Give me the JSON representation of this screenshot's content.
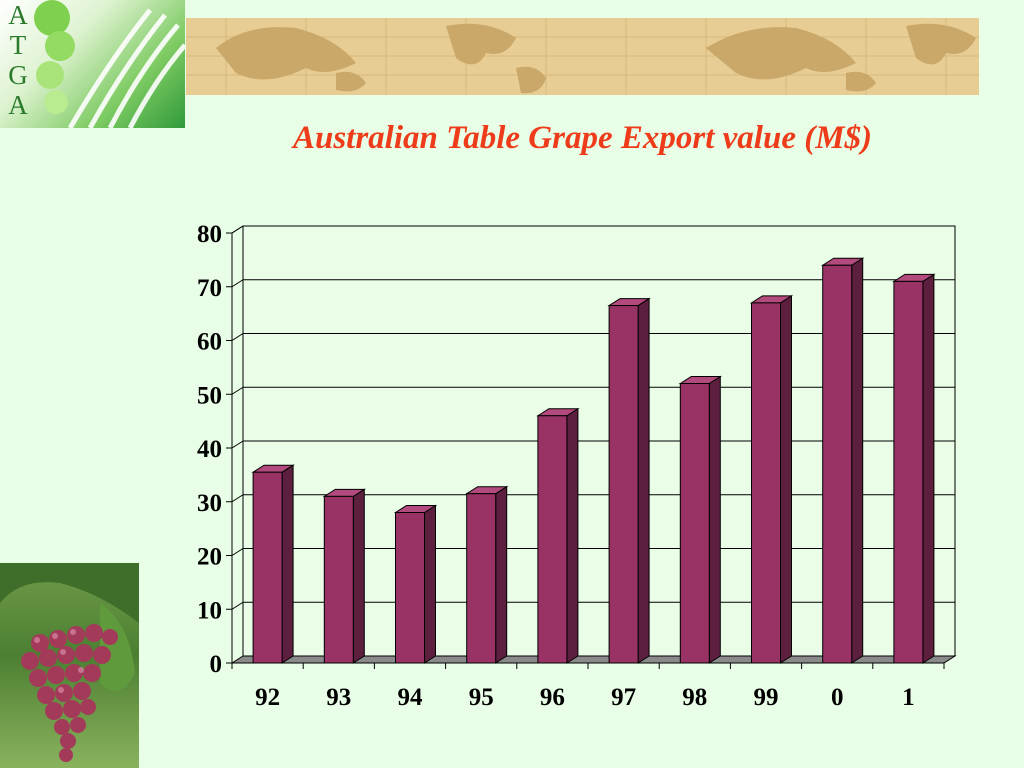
{
  "logo": {
    "letters": [
      "A",
      "T",
      "G",
      "A"
    ]
  },
  "colors": {
    "background": "#e9fee6",
    "title": "#ee3b1a",
    "bar_front": "#993366",
    "bar_top": "#b34a7d",
    "bar_side": "#5c1f3e",
    "banner": "#e7cd94"
  },
  "chart_data": {
    "type": "bar",
    "title": "Australian Table Grape Export value (M$)",
    "xlabel": "",
    "ylabel": "",
    "categories": [
      "92",
      "93",
      "94",
      "95",
      "96",
      "97",
      "98",
      "99",
      "0",
      "1"
    ],
    "values": [
      35.5,
      31,
      28,
      31.5,
      46,
      66.5,
      52,
      67,
      74,
      71
    ],
    "ylim": [
      0,
      80
    ],
    "yticks": [
      0,
      10,
      20,
      30,
      40,
      50,
      60,
      70,
      80
    ],
    "grid": true,
    "style": "3d"
  }
}
